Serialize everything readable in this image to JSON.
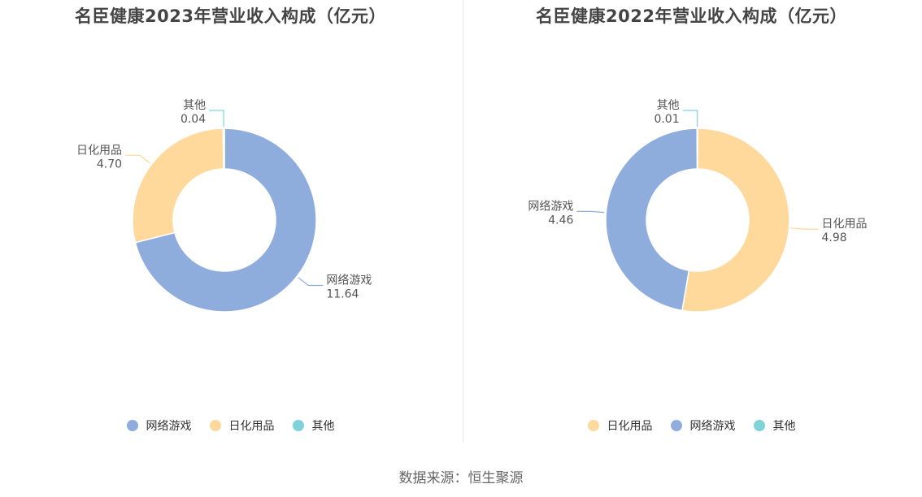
{
  "chart_data": [
    {
      "type": "pie",
      "title": "名臣健康2023年营业收入构成（亿元）",
      "categories": [
        "网络游戏",
        "日化用品",
        "其他"
      ],
      "values": [
        11.64,
        4.7,
        0.04
      ],
      "value_labels": [
        "11.64",
        "4.70",
        "0.04"
      ],
      "colors": [
        "#8faddc",
        "#fed99b",
        "#7fd3d8"
      ],
      "legend": [
        "网络游戏",
        "日化用品",
        "其他"
      ],
      "legend_placement": "bottom",
      "donut": true
    },
    {
      "type": "pie",
      "title": "名臣健康2022年营业收入构成（亿元）",
      "categories": [
        "日化用品",
        "网络游戏",
        "其他"
      ],
      "values": [
        4.98,
        4.46,
        0.01
      ],
      "value_labels": [
        "4.98",
        "4.46",
        "0.01"
      ],
      "colors": [
        "#fed99b",
        "#8faddc",
        "#7fd3d8"
      ],
      "legend": [
        "日化用品",
        "网络游戏",
        "其他"
      ],
      "legend_placement": "bottom",
      "donut": true
    }
  ],
  "footer": {
    "source": "数据来源：恒生聚源"
  }
}
